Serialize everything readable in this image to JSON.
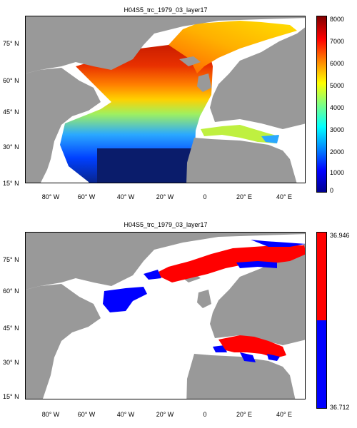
{
  "colors": {
    "land": "#999999",
    "ocean": "#ffffff",
    "pos_high": "#ff0000",
    "pos_low": "#0000ff"
  },
  "lat_ticks": [
    "75° N",
    "60° N",
    "45° N",
    "30° N",
    "15° N"
  ],
  "lon_ticks": [
    "80° W",
    "60° W",
    "40° W",
    "20° W",
    "0",
    "20° E",
    "40° E"
  ],
  "top": {
    "title": "H04S5_trc_1979_03_layer17",
    "colorbar": {
      "colormap": "jet",
      "ticks": [
        "8000",
        "7000",
        "6000",
        "5000",
        "4000",
        "3000",
        "2000",
        "1000",
        "0"
      ]
    }
  },
  "bottom": {
    "title": "H04S5_trc_1979_03_layer17",
    "colorbar": {
      "top_label": "36.946",
      "bottom_label": "36.712"
    }
  }
}
